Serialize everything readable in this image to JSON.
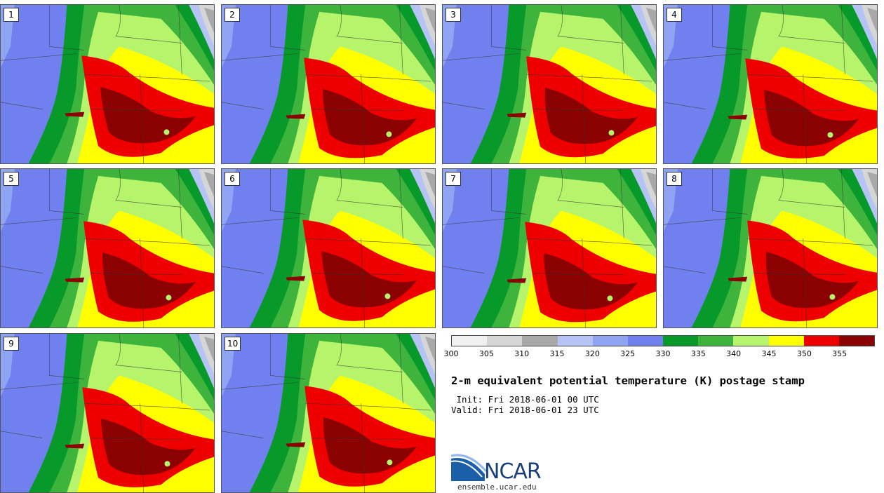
{
  "stamps": [
    {
      "label": "1"
    },
    {
      "label": "2"
    },
    {
      "label": "3"
    },
    {
      "label": "4"
    },
    {
      "label": "5"
    },
    {
      "label": "6"
    },
    {
      "label": "7"
    },
    {
      "label": "8"
    },
    {
      "label": "9"
    },
    {
      "label": "10"
    }
  ],
  "colorbar": {
    "colors": [
      "#f0f0f0",
      "#d6d6d6",
      "#a9a9a9",
      "#b5c4f5",
      "#8fa4f2",
      "#7080ee",
      "#079a2a",
      "#3fb43c",
      "#b6f56b",
      "#ffff00",
      "#ee0000",
      "#8b0000"
    ],
    "ticks": [
      "300",
      "305",
      "310",
      "315",
      "320",
      "325",
      "330",
      "335",
      "340",
      "345",
      "350",
      "355"
    ]
  },
  "title": "2-m equivalent potential temperature (K) postage stamp",
  "init_text": " Init: Fri 2018-06-01 00 UTC",
  "valid_text": "Valid: Fri 2018-06-01 23 UTC",
  "logo": {
    "text": "NCAR",
    "color": "#1a3f7a"
  },
  "site": "ensemble.ucar.edu"
}
